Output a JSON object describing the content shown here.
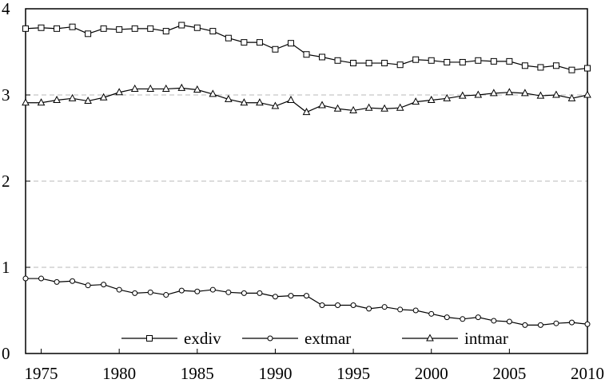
{
  "chart_data": {
    "type": "line",
    "title": "",
    "xlabel": "",
    "ylabel": "",
    "xlim": [
      1974,
      2010
    ],
    "ylim": [
      0,
      4
    ],
    "x_ticks": [
      "1975",
      "1980",
      "1985",
      "1990",
      "1995",
      "2000",
      "2005",
      "2010"
    ],
    "y_ticks": [
      "0",
      "1",
      "2",
      "3",
      "4"
    ],
    "grid": "horizontal dashed",
    "legend_position": "bottom-center",
    "x": [
      1974,
      1975,
      1976,
      1977,
      1978,
      1979,
      1980,
      1981,
      1982,
      1983,
      1984,
      1985,
      1986,
      1987,
      1988,
      1989,
      1990,
      1991,
      1992,
      1993,
      1994,
      1995,
      1996,
      1997,
      1998,
      1999,
      2000,
      2001,
      2002,
      2003,
      2004,
      2005,
      2006,
      2007,
      2008,
      2009,
      2010
    ],
    "series": [
      {
        "name": "exdiv",
        "marker": "square",
        "values": [
          3.77,
          3.78,
          3.77,
          3.79,
          3.71,
          3.77,
          3.76,
          3.77,
          3.77,
          3.74,
          3.81,
          3.78,
          3.74,
          3.66,
          3.61,
          3.61,
          3.53,
          3.6,
          3.47,
          3.44,
          3.4,
          3.37,
          3.37,
          3.37,
          3.35,
          3.41,
          3.4,
          3.38,
          3.38,
          3.4,
          3.39,
          3.39,
          3.34,
          3.32,
          3.34,
          3.29,
          3.31
        ]
      },
      {
        "name": "extmar",
        "marker": "circle",
        "values": [
          0.87,
          0.87,
          0.83,
          0.84,
          0.79,
          0.8,
          0.74,
          0.7,
          0.71,
          0.68,
          0.73,
          0.72,
          0.74,
          0.71,
          0.7,
          0.7,
          0.66,
          0.67,
          0.67,
          0.56,
          0.56,
          0.56,
          0.52,
          0.54,
          0.51,
          0.5,
          0.46,
          0.42,
          0.4,
          0.42,
          0.38,
          0.37,
          0.33,
          0.33,
          0.35,
          0.36,
          0.34
        ]
      },
      {
        "name": "intmar",
        "marker": "triangle",
        "values": [
          2.91,
          2.91,
          2.94,
          2.96,
          2.93,
          2.97,
          3.03,
          3.07,
          3.07,
          3.07,
          3.08,
          3.06,
          3.01,
          2.95,
          2.91,
          2.91,
          2.87,
          2.94,
          2.8,
          2.88,
          2.84,
          2.82,
          2.85,
          2.84,
          2.85,
          2.92,
          2.94,
          2.96,
          2.99,
          3.0,
          3.02,
          3.03,
          3.02,
          2.99,
          3.0,
          2.96,
          3.0
        ]
      }
    ]
  }
}
